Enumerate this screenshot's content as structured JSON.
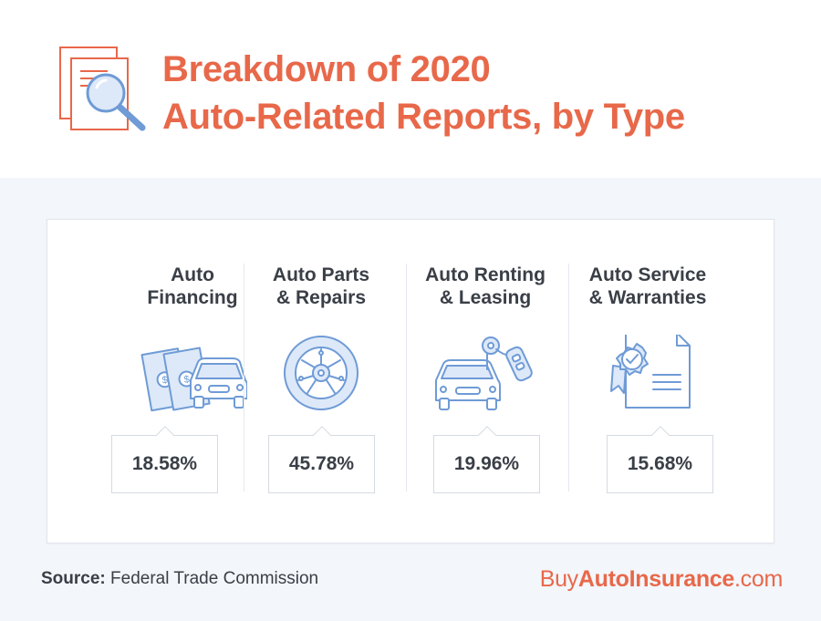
{
  "header": {
    "title_line1": "Breakdown of 2020",
    "title_line2": "Auto-Related Reports, by Type",
    "accent_color": "#e8684a",
    "icon": "document-search-icon"
  },
  "categories": [
    {
      "label": "Auto\nFinancing",
      "value": "18.58%",
      "icon": "money-car-icon"
    },
    {
      "label": "Auto Parts\n& Repairs",
      "value": "45.78%",
      "icon": "tire-icon"
    },
    {
      "label": "Auto Renting\n& Leasing",
      "value": "19.96%",
      "icon": "car-key-icon"
    },
    {
      "label": "Auto Service\n& Warranties",
      "value": "15.68%",
      "icon": "warranty-certificate-icon"
    }
  ],
  "footer": {
    "source_label": "Source:",
    "source_text": " Federal Trade Commission",
    "brand_prefix": "Buy",
    "brand_bold": "AutoInsurance",
    "brand_suffix": ".com"
  }
}
